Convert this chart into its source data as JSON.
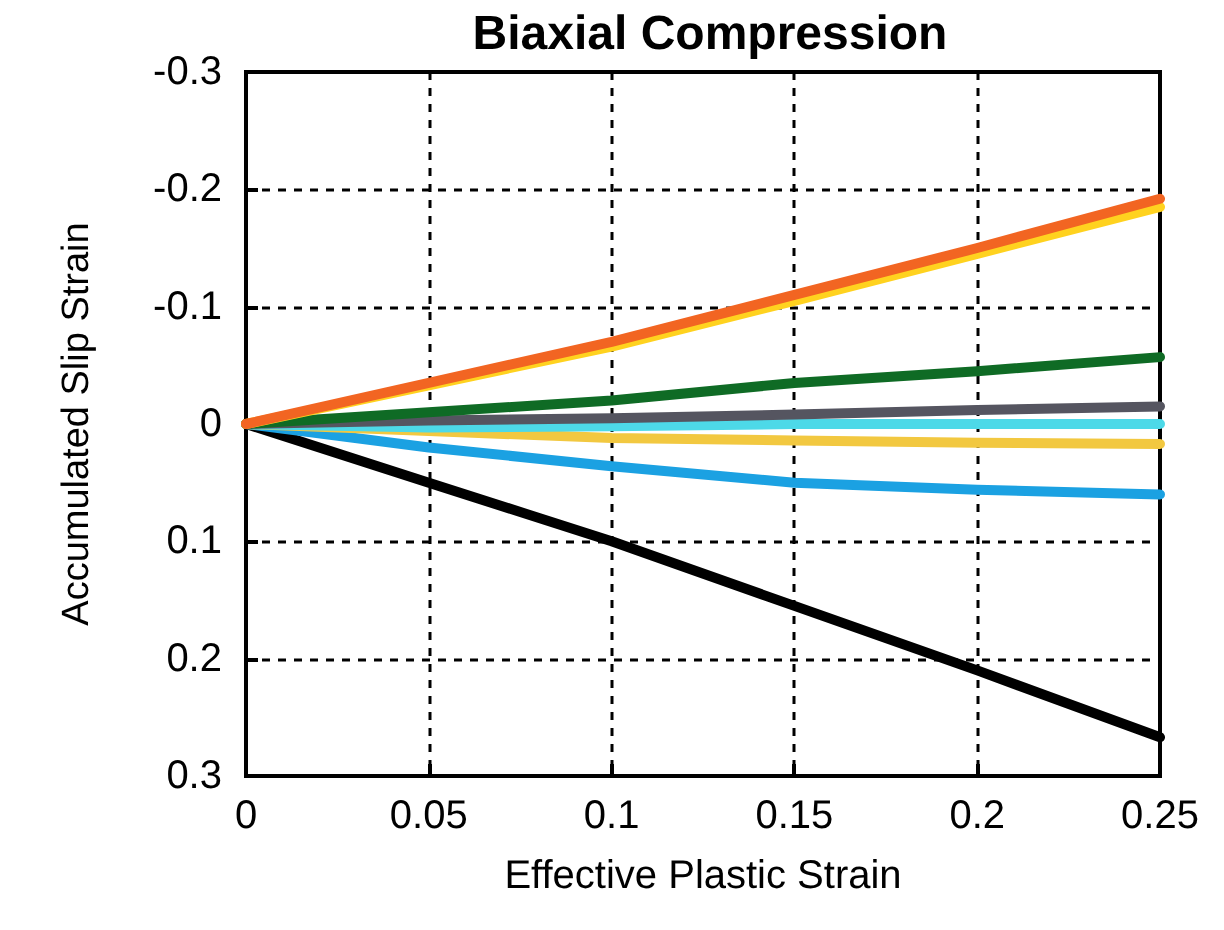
{
  "chart_data": {
    "type": "line",
    "title": "Biaxial Compression",
    "xlabel": "Effective Plastic Strain",
    "ylabel": "Accumulated Slip Strain",
    "x": [
      0,
      0.05,
      0.1,
      0.15,
      0.2,
      0.25
    ],
    "series": [
      {
        "color": "#000000",
        "values": [
          0,
          0.05,
          0.1,
          0.155,
          0.21,
          0.267
        ]
      },
      {
        "color": "#1ba1e2",
        "values": [
          0,
          0.02,
          0.036,
          0.05,
          0.056,
          0.06
        ]
      },
      {
        "color": "#f2c840",
        "values": [
          0,
          0.006,
          0.012,
          0.014,
          0.016,
          0.017
        ]
      },
      {
        "color": "#4dd9e8",
        "values": [
          0,
          0.003,
          0.002,
          0,
          0,
          0
        ]
      },
      {
        "color": "#555560",
        "values": [
          0,
          -0.003,
          -0.005,
          -0.008,
          -0.012,
          -0.015
        ]
      },
      {
        "color": "#0f6b25",
        "values": [
          0,
          -0.01,
          -0.02,
          -0.035,
          -0.045,
          -0.057
        ]
      },
      {
        "color": "#ffd21f",
        "values": [
          0,
          -0.033,
          -0.066,
          -0.105,
          -0.145,
          -0.185
        ]
      },
      {
        "color": "#f26522",
        "values": [
          0,
          -0.035,
          -0.07,
          -0.11,
          -0.15,
          -0.192
        ]
      }
    ],
    "xlim": [
      0,
      0.25
    ],
    "xticks": [
      0,
      0.05,
      0.1,
      0.15,
      0.2,
      0.25
    ],
    "ylim": [
      0.3,
      -0.3
    ],
    "yticks": [
      -0.3,
      -0.2,
      -0.1,
      0,
      0.1,
      0.2,
      0.3
    ],
    "grid": true,
    "marker": "none",
    "line_style": "solid"
  }
}
